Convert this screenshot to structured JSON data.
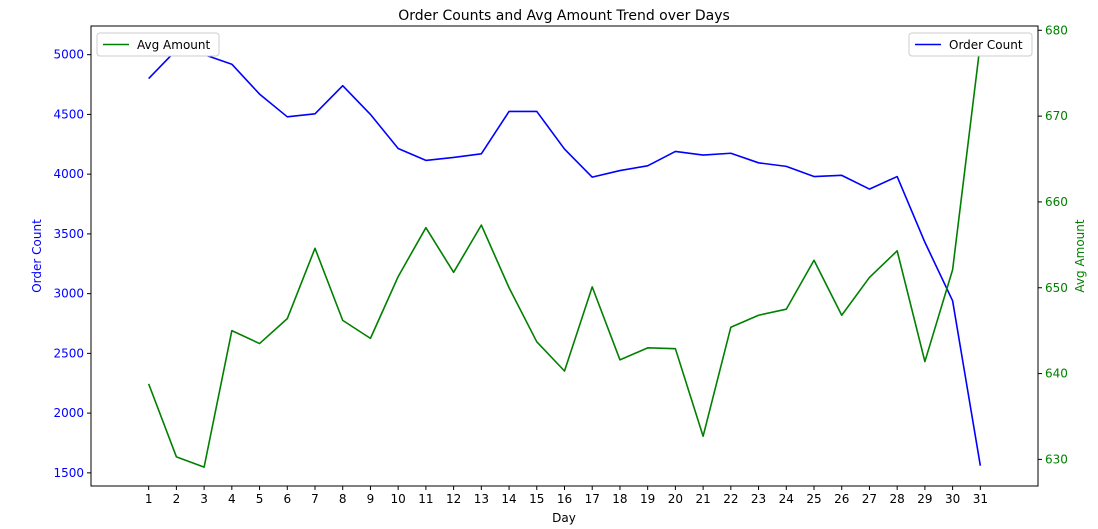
{
  "chart_data": {
    "type": "line",
    "title": "Order Counts and Avg Amount Trend over Days",
    "xlabel": "Day",
    "x": [
      1,
      2,
      3,
      4,
      5,
      6,
      7,
      8,
      9,
      10,
      11,
      12,
      13,
      14,
      15,
      16,
      17,
      18,
      19,
      20,
      21,
      22,
      23,
      24,
      25,
      26,
      27,
      28,
      29,
      30,
      31
    ],
    "y_left": {
      "label": "Order Count",
      "color": "#0000ff",
      "ylim": [
        1390,
        5240
      ],
      "ticks": [
        1500,
        2000,
        2500,
        3000,
        3500,
        4000,
        4500,
        5000
      ]
    },
    "y_right": {
      "label": "Avg Amount",
      "color": "#008000",
      "ylim": [
        626.9,
        680.5
      ],
      "ticks": [
        630,
        640,
        650,
        660,
        670,
        680
      ]
    },
    "series": [
      {
        "name": "Order Count",
        "axis": "left",
        "color": "#0000ff",
        "values": [
          4800,
          5040,
          5000,
          4920,
          4670,
          4480,
          4505,
          4740,
          4500,
          4215,
          4115,
          4140,
          4170,
          4525,
          4525,
          4210,
          3975,
          4030,
          4070,
          4190,
          4160,
          4175,
          4095,
          4065,
          3980,
          3990,
          3875,
          3980,
          3430,
          2940,
          1560
        ]
      },
      {
        "name": "Avg Amount",
        "axis": "right",
        "color": "#008000",
        "values": [
          638.8,
          630.3,
          629.1,
          645.0,
          643.5,
          646.4,
          654.6,
          646.2,
          644.1,
          651.3,
          657.0,
          651.8,
          657.3,
          650.0,
          643.7,
          640.3,
          650.1,
          641.6,
          643.0,
          642.9,
          632.7,
          645.4,
          646.8,
          647.5,
          653.2,
          646.8,
          651.2,
          654.3,
          641.4,
          652.1,
          678.5
        ]
      }
    ],
    "legend_left": {
      "label": "Avg Amount",
      "position": "upper-left"
    },
    "legend_right": {
      "label": "Order Count",
      "position": "upper-right"
    }
  }
}
